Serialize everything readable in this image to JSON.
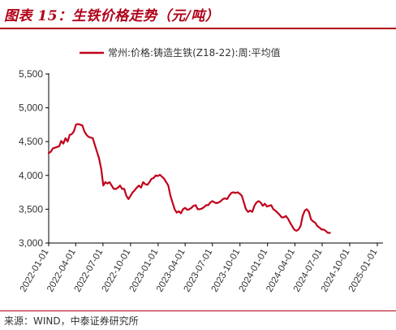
{
  "figure": {
    "title": "图表 15：生铁价格走势（元/吨）",
    "source": "来源：WIND，中泰证券研究所"
  },
  "colors": {
    "accent": "#b00018",
    "series": "#c0001a",
    "axis": "#000000",
    "text": "#333333"
  },
  "chart_data": {
    "type": "line",
    "title": "",
    "xlabel": "",
    "ylabel": "",
    "ylim": [
      3000,
      5500
    ],
    "yticks": [
      3000,
      3500,
      4000,
      4500,
      5000,
      5500
    ],
    "ytick_labels": [
      "3,000",
      "3,500",
      "4,000",
      "4,500",
      "5,000",
      "5,500"
    ],
    "xlim": [
      "2022-01-01",
      "2025-01-20"
    ],
    "xticks": [
      "2022-01-01",
      "2022-04-01",
      "2022-07-01",
      "2022-10-01",
      "2023-01-01",
      "2023-04-01",
      "2023-07-01",
      "2023-10-01",
      "2024-01-01",
      "2024-04-01",
      "2024-07-01",
      "2024-10-01",
      "2025-01-01"
    ],
    "grid": false,
    "legend": "top",
    "series": [
      {
        "name": "常州:价格:铸造生铁(Z18-22):周:平均值",
        "points": [
          [
            "2022-01-01",
            4330
          ],
          [
            "2022-01-08",
            4350
          ],
          [
            "2022-01-15",
            4400
          ],
          [
            "2022-01-22",
            4410
          ],
          [
            "2022-02-05",
            4430
          ],
          [
            "2022-02-12",
            4510
          ],
          [
            "2022-02-19",
            4470
          ],
          [
            "2022-02-26",
            4550
          ],
          [
            "2022-03-05",
            4500
          ],
          [
            "2022-03-12",
            4600
          ],
          [
            "2022-03-19",
            4610
          ],
          [
            "2022-03-26",
            4650
          ],
          [
            "2022-04-02",
            4750
          ],
          [
            "2022-04-09",
            4760
          ],
          [
            "2022-04-16",
            4750
          ],
          [
            "2022-04-23",
            4740
          ],
          [
            "2022-04-30",
            4650
          ],
          [
            "2022-05-07",
            4600
          ],
          [
            "2022-05-14",
            4570
          ],
          [
            "2022-05-21",
            4560
          ],
          [
            "2022-05-28",
            4550
          ],
          [
            "2022-06-04",
            4450
          ],
          [
            "2022-06-11",
            4350
          ],
          [
            "2022-06-18",
            4250
          ],
          [
            "2022-06-25",
            4100
          ],
          [
            "2022-07-02",
            3850
          ],
          [
            "2022-07-09",
            3900
          ],
          [
            "2022-07-16",
            3880
          ],
          [
            "2022-07-23",
            3900
          ],
          [
            "2022-07-30",
            3850
          ],
          [
            "2022-08-06",
            3800
          ],
          [
            "2022-08-13",
            3800
          ],
          [
            "2022-08-20",
            3820
          ],
          [
            "2022-08-27",
            3850
          ],
          [
            "2022-09-03",
            3800
          ],
          [
            "2022-09-10",
            3800
          ],
          [
            "2022-09-17",
            3700
          ],
          [
            "2022-09-24",
            3650
          ],
          [
            "2022-10-01",
            3700
          ],
          [
            "2022-10-08",
            3750
          ],
          [
            "2022-10-15",
            3780
          ],
          [
            "2022-10-22",
            3820
          ],
          [
            "2022-10-29",
            3850
          ],
          [
            "2022-11-05",
            3820
          ],
          [
            "2022-11-12",
            3900
          ],
          [
            "2022-11-19",
            3870
          ],
          [
            "2022-11-26",
            3860
          ],
          [
            "2022-12-03",
            3900
          ],
          [
            "2022-12-10",
            3950
          ],
          [
            "2022-12-17",
            3960
          ],
          [
            "2022-12-24",
            4000
          ],
          [
            "2022-12-31",
            3990
          ],
          [
            "2023-01-07",
            4010
          ],
          [
            "2023-01-14",
            3980
          ],
          [
            "2023-01-21",
            3950
          ],
          [
            "2023-01-28",
            3900
          ],
          [
            "2023-02-04",
            3850
          ],
          [
            "2023-02-11",
            3700
          ],
          [
            "2023-02-18",
            3600
          ],
          [
            "2023-02-25",
            3500
          ],
          [
            "2023-03-04",
            3450
          ],
          [
            "2023-03-11",
            3470
          ],
          [
            "2023-03-18",
            3440
          ],
          [
            "2023-03-25",
            3500
          ],
          [
            "2023-04-01",
            3520
          ],
          [
            "2023-04-08",
            3490
          ],
          [
            "2023-04-15",
            3500
          ],
          [
            "2023-04-22",
            3520
          ],
          [
            "2023-04-29",
            3550
          ],
          [
            "2023-05-06",
            3560
          ],
          [
            "2023-05-13",
            3500
          ],
          [
            "2023-05-20",
            3500
          ],
          [
            "2023-05-27",
            3510
          ],
          [
            "2023-06-03",
            3530
          ],
          [
            "2023-06-10",
            3560
          ],
          [
            "2023-06-17",
            3560
          ],
          [
            "2023-06-24",
            3600
          ],
          [
            "2023-07-01",
            3620
          ],
          [
            "2023-07-08",
            3600
          ],
          [
            "2023-07-15",
            3590
          ],
          [
            "2023-07-22",
            3600
          ],
          [
            "2023-07-29",
            3620
          ],
          [
            "2023-08-05",
            3650
          ],
          [
            "2023-08-12",
            3660
          ],
          [
            "2023-08-19",
            3650
          ],
          [
            "2023-08-26",
            3700
          ],
          [
            "2023-09-02",
            3740
          ],
          [
            "2023-09-09",
            3750
          ],
          [
            "2023-09-16",
            3740
          ],
          [
            "2023-09-23",
            3750
          ],
          [
            "2023-09-30",
            3730
          ],
          [
            "2023-10-07",
            3700
          ],
          [
            "2023-10-14",
            3600
          ],
          [
            "2023-10-21",
            3500
          ],
          [
            "2023-10-28",
            3460
          ],
          [
            "2023-11-04",
            3480
          ],
          [
            "2023-11-11",
            3460
          ],
          [
            "2023-11-18",
            3550
          ],
          [
            "2023-11-25",
            3600
          ],
          [
            "2023-12-02",
            3620
          ],
          [
            "2023-12-09",
            3600
          ],
          [
            "2023-12-16",
            3550
          ],
          [
            "2023-12-23",
            3580
          ],
          [
            "2023-12-30",
            3540
          ],
          [
            "2024-01-06",
            3550
          ],
          [
            "2024-01-13",
            3560
          ],
          [
            "2024-01-20",
            3500
          ],
          [
            "2024-01-27",
            3480
          ],
          [
            "2024-02-03",
            3450
          ],
          [
            "2024-02-10",
            3420
          ],
          [
            "2024-02-17",
            3380
          ],
          [
            "2024-02-24",
            3380
          ],
          [
            "2024-03-02",
            3400
          ],
          [
            "2024-03-09",
            3360
          ],
          [
            "2024-03-16",
            3300
          ],
          [
            "2024-03-23",
            3250
          ],
          [
            "2024-03-30",
            3200
          ],
          [
            "2024-04-06",
            3180
          ],
          [
            "2024-04-13",
            3200
          ],
          [
            "2024-04-20",
            3250
          ],
          [
            "2024-04-27",
            3400
          ],
          [
            "2024-05-04",
            3480
          ],
          [
            "2024-05-11",
            3500
          ],
          [
            "2024-05-18",
            3460
          ],
          [
            "2024-05-25",
            3350
          ],
          [
            "2024-06-01",
            3320
          ],
          [
            "2024-06-08",
            3300
          ],
          [
            "2024-06-15",
            3250
          ],
          [
            "2024-06-22",
            3230
          ],
          [
            "2024-06-29",
            3200
          ],
          [
            "2024-07-06",
            3200
          ],
          [
            "2024-07-13",
            3180
          ],
          [
            "2024-07-20",
            3150
          ],
          [
            "2024-07-27",
            3150
          ]
        ]
      }
    ]
  }
}
